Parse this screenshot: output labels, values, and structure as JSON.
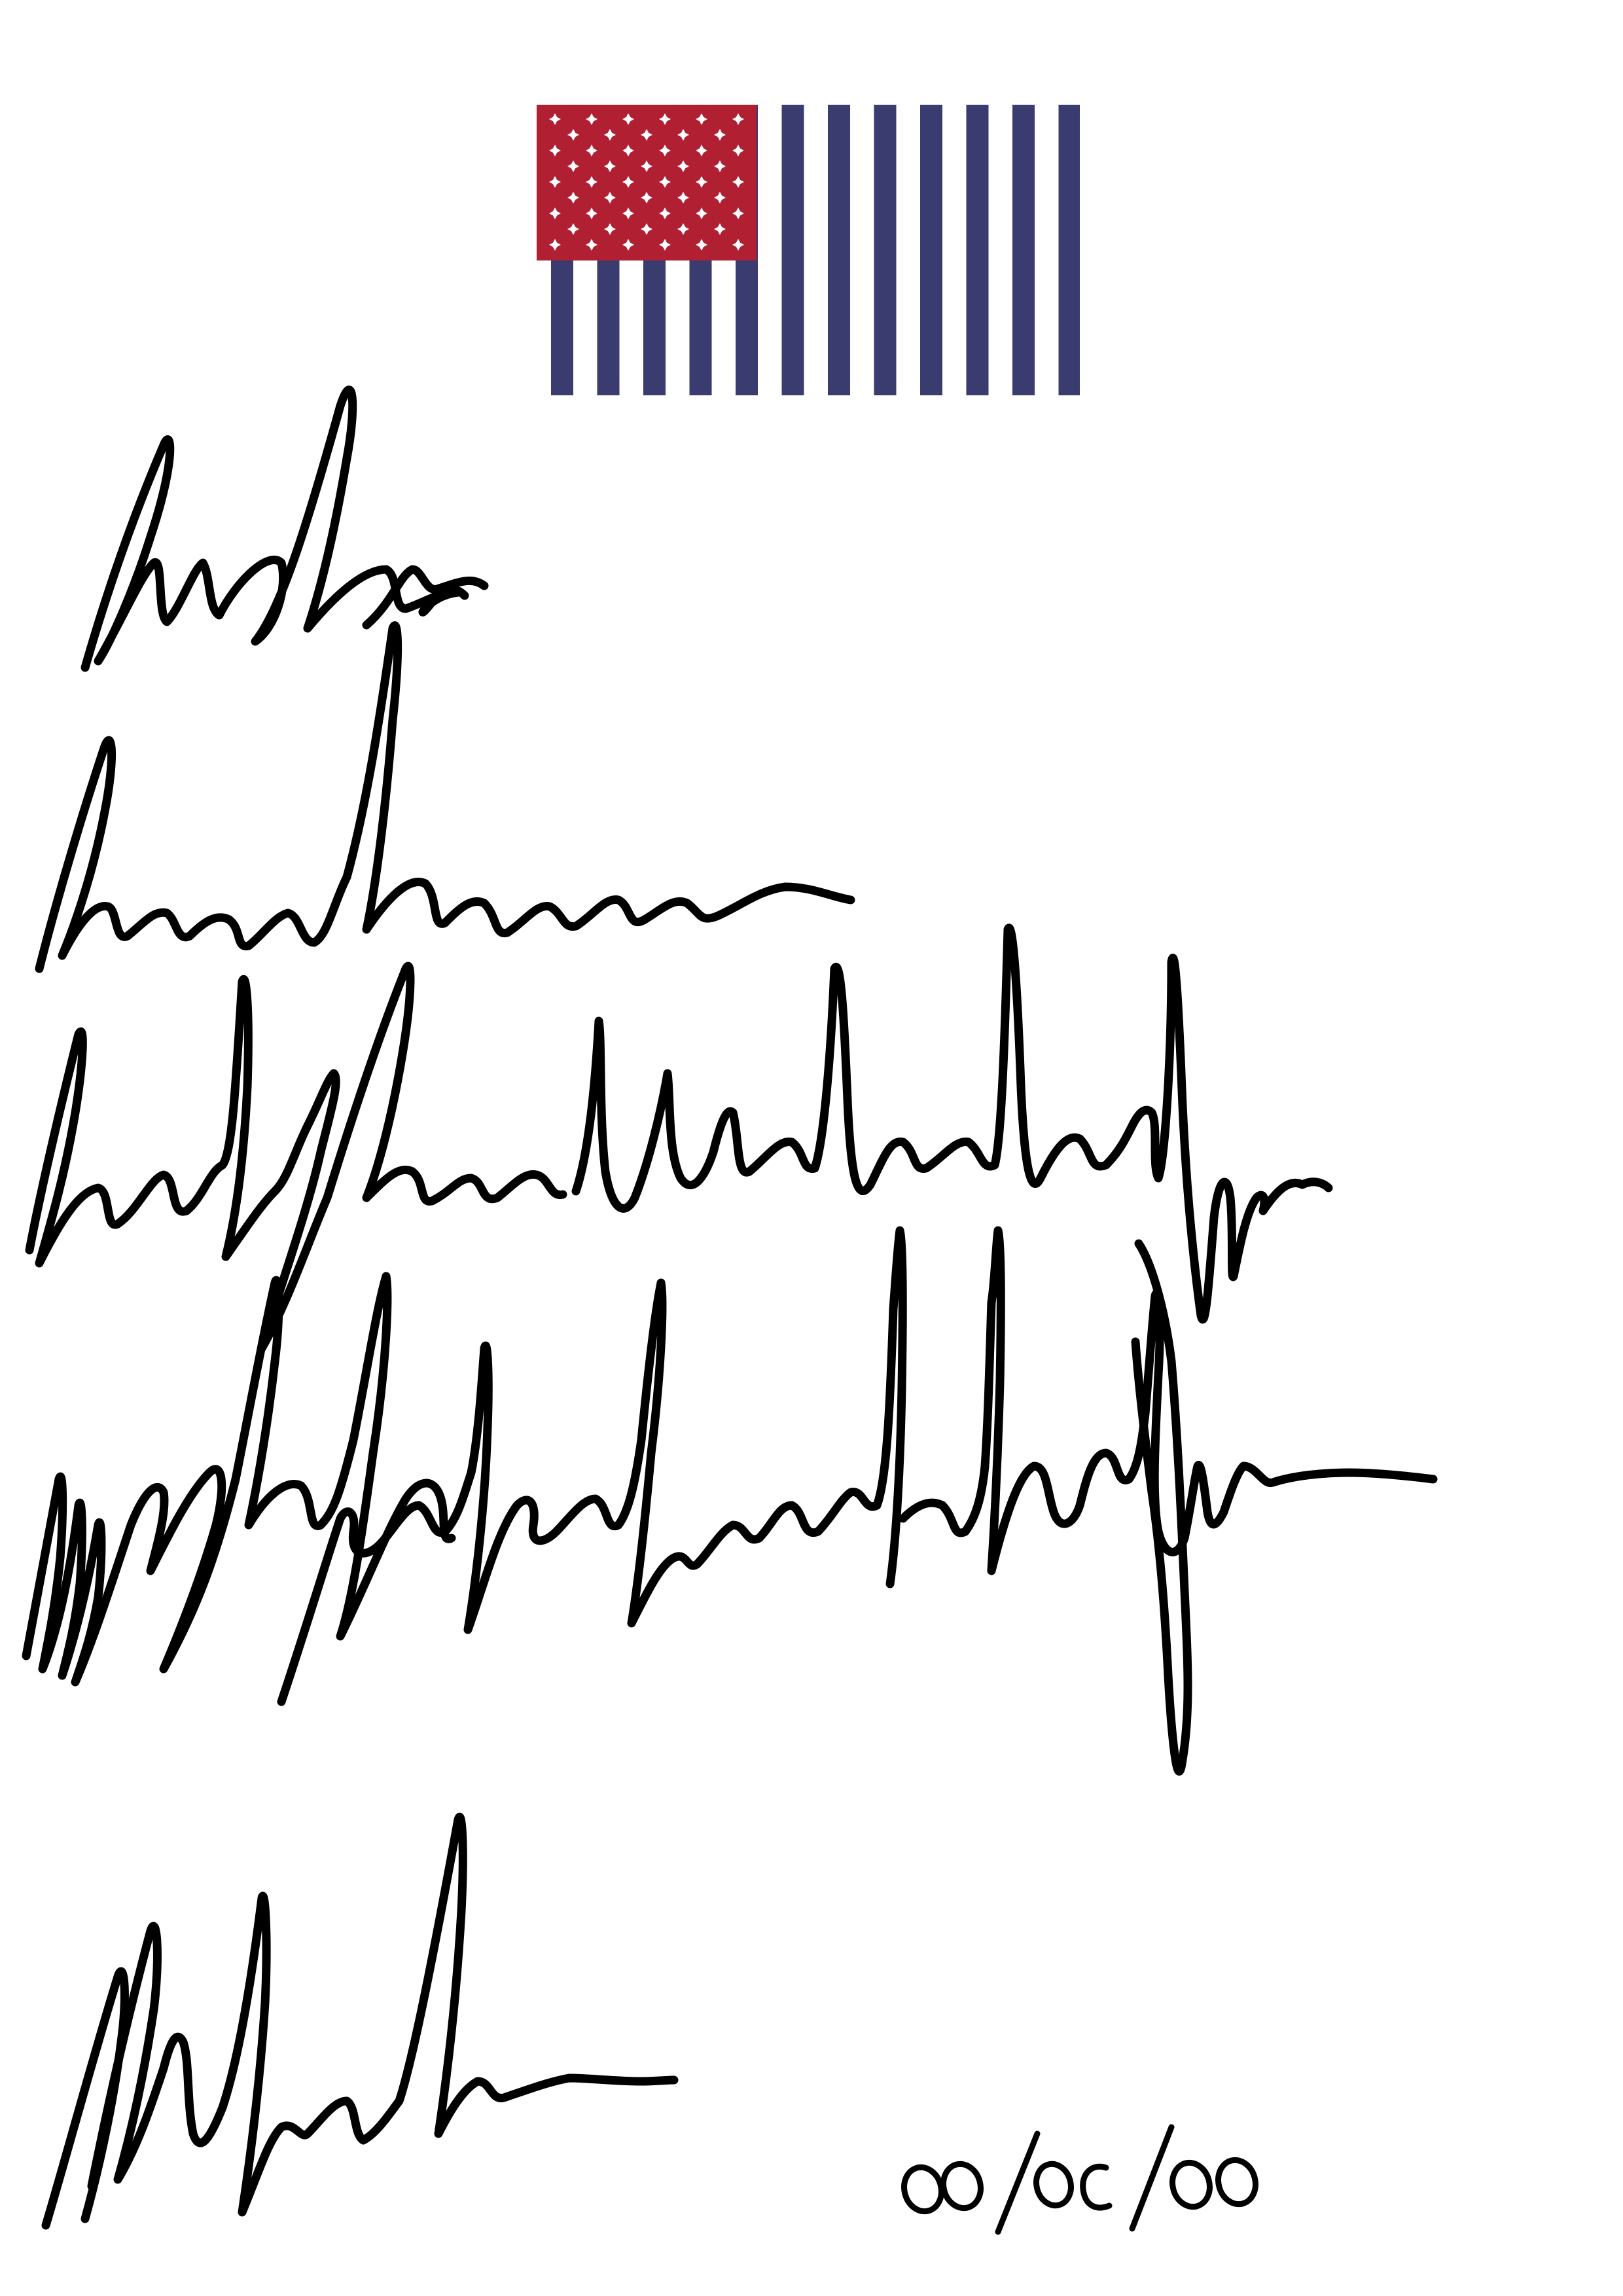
{
  "document": {
    "kind": "handwritten-scribble-page",
    "date_stamp": "00/00/00"
  },
  "flag": {
    "icon": "stylized-us-flag-icon",
    "colors": {
      "canton": "#b11f33",
      "stripes": "#3a3b6e",
      "stars": "#ffffff"
    },
    "vertical_stripe_count": 12
  },
  "ink": {
    "color": "#000000"
  }
}
